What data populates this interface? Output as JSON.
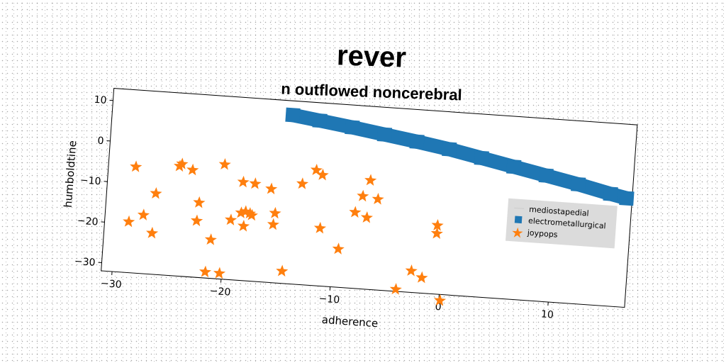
{
  "chart_data": {
    "type": "scatter",
    "title": "rever",
    "subtitle": "n outflowed noncerebral",
    "xlabel": "adherence",
    "ylabel": "humboldtine",
    "xlim": [
      -31,
      17
    ],
    "ylim": [
      -32,
      13
    ],
    "xticks": [
      -30,
      -20,
      -10,
      0,
      10
    ],
    "yticks": [
      10,
      0,
      -10,
      -20,
      -30
    ],
    "grid": false,
    "legend_position": "right",
    "series": [
      {
        "name": "mediostapedial",
        "marker": "line",
        "color": "#1f77b4",
        "x": [],
        "y": []
      },
      {
        "name": "electrometallurgical",
        "marker": "square",
        "color": "#1f77b4",
        "x": [
          -14.5,
          -12,
          -9,
          -6,
          -3,
          0,
          3,
          6,
          9,
          12,
          15,
          16.5
        ],
        "y": [
          9.5,
          8.6,
          7.5,
          6.3,
          5.1,
          3.8,
          2.2,
          0.6,
          -1.0,
          -2.6,
          -4.4,
          -5.2
        ]
      },
      {
        "name": "joypops",
        "marker": "star",
        "color": "#ff7f0e",
        "x": [
          -28.5,
          -26.5,
          -26.6,
          -27.5,
          -28.8,
          -24.3,
          -23.3,
          -24.5,
          -22.5,
          -22.6,
          -21.2,
          -21.5,
          -20.2,
          -19.5,
          -20.4,
          -18.6,
          -18.2,
          -17.5,
          -18.6,
          -17.6,
          -18.3,
          -17.8,
          -16.0,
          -15.5,
          -15.6,
          -14.5,
          -13.2,
          -12.0,
          -11.4,
          -11.3,
          -9.5,
          -8.2,
          -7.6,
          -7.1,
          -6.2,
          -7.0,
          -4.0,
          -2.7,
          -1.7,
          -0.6,
          -0.6,
          0.1
        ],
        "y": [
          -5.9,
          -12.1,
          -21.9,
          -17.6,
          -19.5,
          -4.4,
          -5.7,
          -5.0,
          -13.6,
          -18.1,
          -22.5,
          -30.5,
          -30.6,
          -17.3,
          -3.8,
          -7.8,
          -15.0,
          -8.0,
          -15.4,
          -15.8,
          -18.6,
          -15.4,
          -9.0,
          -14.9,
          -17.7,
          -29.0,
          -7.2,
          -3.6,
          -4.7,
          -17.8,
          -22.6,
          -13.3,
          -9.2,
          -14.4,
          -9.7,
          -5.2,
          -31.5,
          -26.7,
          -28.2,
          -15.1,
          -17.1,
          -33.5
        ]
      }
    ]
  }
}
